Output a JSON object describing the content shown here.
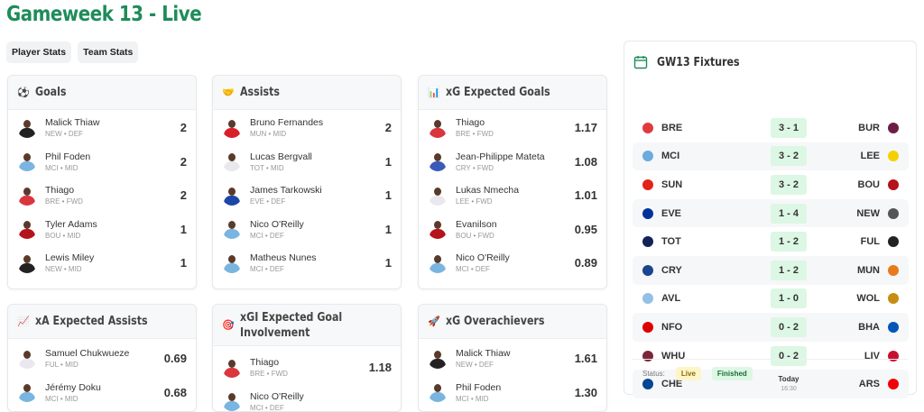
{
  "title": "Gameweek 13 - Live",
  "tabs": [
    "Player Stats",
    "Team Stats"
  ],
  "cards": [
    {
      "title": "Goals",
      "icon": "⚽",
      "rows": [
        {
          "name": "Malick Thiaw",
          "meta": "NEW  •  DEF",
          "value": "2",
          "kit": "#222"
        },
        {
          "name": "Phil Foden",
          "meta": "MCI  •  MID",
          "value": "2",
          "kit": "#7ab4e0"
        },
        {
          "name": "Thiago",
          "meta": "BRE  •  FWD",
          "value": "2",
          "kit": "#d9363e"
        },
        {
          "name": "Tyler Adams",
          "meta": "BOU  •  MID",
          "value": "1",
          "kit": "#b5121b"
        },
        {
          "name": "Lewis Miley",
          "meta": "NEW  •  MID",
          "value": "1",
          "kit": "#222"
        }
      ]
    },
    {
      "title": "Assists",
      "icon": "🤝",
      "rows": [
        {
          "name": "Bruno Fernandes",
          "meta": "MUN  •  MID",
          "value": "2",
          "kit": "#d8202a"
        },
        {
          "name": "Lucas Bergvall",
          "meta": "TOT  •  MID",
          "value": "1",
          "kit": "#e8e8ee"
        },
        {
          "name": "James Tarkowski",
          "meta": "EVE  •  DEF",
          "value": "1",
          "kit": "#1c47a8"
        },
        {
          "name": "Nico O'Reilly",
          "meta": "MCI  •  DEF",
          "value": "1",
          "kit": "#7ab4e0"
        },
        {
          "name": "Matheus Nunes",
          "meta": "MCI  •  DEF",
          "value": "1",
          "kit": "#7ab4e0"
        }
      ]
    },
    {
      "title": "xG Expected Goals",
      "icon": "📊",
      "rows": [
        {
          "name": "Thiago",
          "meta": "BRE  •  FWD",
          "value": "1.17",
          "kit": "#d9363e"
        },
        {
          "name": "Jean-Philippe Mateta",
          "meta": "CRY  •  FWD",
          "value": "1.08",
          "kit": "#3a5bb8"
        },
        {
          "name": "Lukas Nmecha",
          "meta": "LEE  •  FWD",
          "value": "1.01",
          "kit": "#e8e8ee"
        },
        {
          "name": "Evanilson",
          "meta": "BOU  •  FWD",
          "value": "0.95",
          "kit": "#b5121b"
        },
        {
          "name": "Nico O'Reilly",
          "meta": "MCI  •  DEF",
          "value": "0.89",
          "kit": "#7ab4e0"
        }
      ]
    },
    {
      "title": "xA Expected Assists",
      "icon": "📈",
      "rows": [
        {
          "name": "Samuel Chukwueze",
          "meta": "FUL  •  MID",
          "value": "0.69",
          "kit": "#e8e8ee"
        },
        {
          "name": "Jérémy Doku",
          "meta": "MCI  •  MID",
          "value": "0.68",
          "kit": "#7ab4e0"
        }
      ]
    },
    {
      "title": "xGI Expected Goal Involvement",
      "icon": "🎯",
      "rows": [
        {
          "name": "Thiago",
          "meta": "BRE  •  FWD",
          "value": "1.18",
          "kit": "#d9363e"
        },
        {
          "name": "Nico O'Reilly",
          "meta": "MCI  •  DEF",
          "value": "",
          "kit": "#7ab4e0"
        }
      ]
    },
    {
      "title": "xG Overachievers",
      "icon": "🚀",
      "rows": [
        {
          "name": "Malick Thiaw",
          "meta": "NEW  •  DEF",
          "value": "1.61",
          "kit": "#222"
        },
        {
          "name": "Phil Foden",
          "meta": "MCI  •  MID",
          "value": "1.30",
          "kit": "#7ab4e0"
        }
      ]
    }
  ],
  "fixtures": {
    "title": "GW13 Fixtures",
    "items": [
      {
        "home": "BRE",
        "away": "BUR",
        "score": "3 - 1",
        "hc": "#e03a3e",
        "ac": "#6c1d45"
      },
      {
        "home": "MCI",
        "away": "LEE",
        "score": "3 - 2",
        "hc": "#6cabdd",
        "ac": "#f5d000"
      },
      {
        "home": "SUN",
        "away": "BOU",
        "score": "3 - 2",
        "hc": "#e2231a",
        "ac": "#b5121b"
      },
      {
        "home": "EVE",
        "away": "NEW",
        "score": "1 - 4",
        "hc": "#003399",
        "ac": "#555"
      },
      {
        "home": "TOT",
        "away": "FUL",
        "score": "1 - 2",
        "hc": "#132257",
        "ac": "#222"
      },
      {
        "home": "CRY",
        "away": "MUN",
        "score": "1 - 2",
        "hc": "#1b458f",
        "ac": "#e87a1c"
      },
      {
        "home": "AVL",
        "away": "WOL",
        "score": "1 - 0",
        "hc": "#95bfe5",
        "ac": "#c78d10"
      },
      {
        "home": "NFO",
        "away": "BHA",
        "score": "0 - 2",
        "hc": "#dd0000",
        "ac": "#0057b8"
      },
      {
        "home": "WHU",
        "away": "LIV",
        "score": "0 - 2",
        "hc": "#7a263a",
        "ac": "#c8102e"
      },
      {
        "home": "CHE",
        "away": "ARS",
        "day": "Today",
        "time": "16:30",
        "hc": "#034694",
        "ac": "#ef0107"
      }
    ],
    "status_label": "Status:",
    "live_label": "Live",
    "finished_label": "Finished"
  },
  "colors": {
    "accent": "#1e8c5a",
    "score_bg": "#dcf7e4",
    "live_bg": "#fdf5c8"
  }
}
